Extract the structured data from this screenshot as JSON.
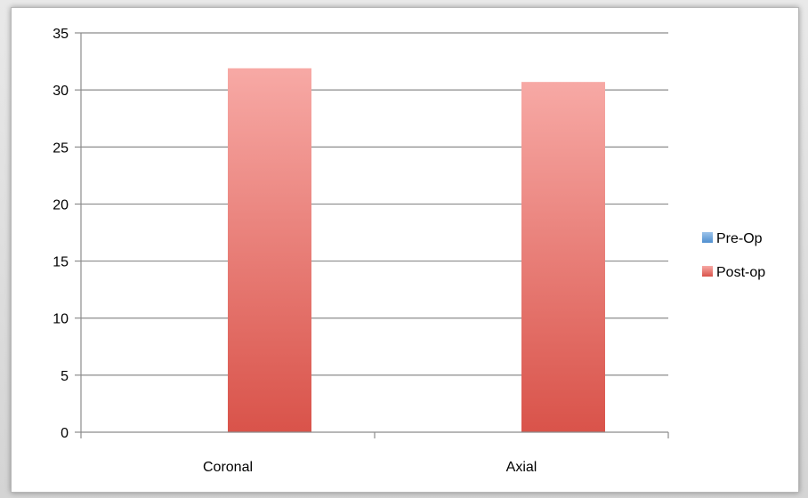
{
  "chart_data": {
    "type": "bar",
    "title": "",
    "xlabel": "",
    "ylabel": "",
    "categories": [
      "Coronal",
      "Axial"
    ],
    "series": [
      {
        "name": "Pre-Op",
        "values": [
          0,
          0
        ],
        "color": "#5b9bd5"
      },
      {
        "name": "Post-op",
        "values": [
          31.9,
          30.7
        ],
        "color": "#e8625a"
      }
    ],
    "ylim": [
      0,
      35
    ],
    "yticks": [
      0,
      5,
      10,
      15,
      20,
      25,
      30,
      35
    ],
    "grid": true,
    "legend_position": "right",
    "bar_gradient": {
      "top": "#f7a9a5",
      "bottom": "#d9534a"
    }
  }
}
